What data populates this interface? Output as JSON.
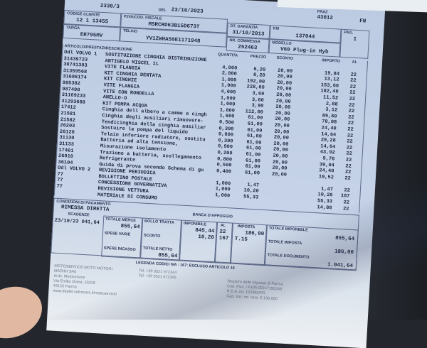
{
  "doc": {
    "numero": "2330/3",
    "del_label": "DEL",
    "data": "23/10/2023",
    "fraz_label": "FRAZ",
    "fraz_val": "43012",
    "fn": "FN",
    "codice_cliente_label": "CODICE CLIENTE",
    "codice_cliente": "12 1 13455",
    "piva_label": "P.IVA/COD. FISCALE",
    "piva": "MSRCRD63B15D673T",
    "targa_label": "TARGA",
    "targa": "ER795MV",
    "telaio_label": "TELAIO",
    "telaio": "YV1ZWHA50E1171948",
    "garanzia_label": "DT. GARANZIA",
    "garanzia": "31/10/2013",
    "km_label": "KM",
    "km": "137044",
    "commessa_label": "NR. COMMESSA",
    "commessa": "252463",
    "modello_label": "MODELLO",
    "modello": "V60 Plug-in Hyb",
    "pag_label": "PAG.",
    "pag": "1"
  },
  "columns": {
    "articolo": "ARTICOLO/PRESTAZIONE",
    "descrizione": "DESCRIZIONE",
    "quantita": "QUANTITA",
    "prezzo": "PREZZO",
    "sconto": "SCONTO",
    "importo": "IMPORTO",
    "al": "AL"
  },
  "items": [
    {
      "art": "Odl VOLVO 1",
      "desc": "SOSTITUZIONE CINGHIA DISTRIBUZIONE",
      "qty": "",
      "price": "",
      "disc": "",
      "amt": "",
      "iva": ""
    },
    {
      "art": "31439723",
      "desc": "ANTIGELO MISCEL 1L",
      "qty": "4,000",
      "price": "6,20",
      "disc": "20,00",
      "amt": "19,84",
      "iva": "22"
    },
    {
      "art": "30741303",
      "desc": "VITE FLANGIA",
      "qty": "2,000",
      "price": "8,20",
      "disc": "20,00",
      "amt": "13,12",
      "iva": "22"
    },
    {
      "art": "31359568",
      "desc": "KIT CINGHIA DENTATA",
      "qty": "1,000",
      "price": "192,00",
      "disc": "20,00",
      "amt": "153,60",
      "iva": "22"
    },
    {
      "art": "31686174",
      "desc": "KIT CINGHIE",
      "qty": "1,000",
      "price": "228,00",
      "disc": "20,00",
      "amt": "182,40",
      "iva": "22"
    },
    {
      "art": "985382",
      "desc": "VITE FLANGIA",
      "qty": "4,000",
      "price": "3,60",
      "disc": "20,00",
      "amt": "11,52",
      "iva": "22"
    },
    {
      "art": "987498",
      "desc": "VITE CON RONDELLA",
      "qty": "1,000",
      "price": "3,60",
      "disc": "20,00",
      "amt": "2,88",
      "iva": "22"
    },
    {
      "art": "31109233",
      "desc": "ANELLO-O",
      "qty": "1,000",
      "price": "3,90",
      "disc": "20,00",
      "amt": "3,12",
      "iva": "22"
    },
    {
      "art": "31293668",
      "desc": "KIT POMPA ACQUA",
      "qty": "1,000",
      "price": "112,00",
      "disc": "20,00",
      "amt": "89,60",
      "iva": "22"
    },
    {
      "art": "17412",
      "desc": "Cinghia dell albero a camme e cingh",
      "qty": "1,600",
      "price": "61,00",
      "disc": "20,00",
      "amt": "78,08",
      "iva": "22"
    },
    {
      "art": "21581",
      "desc": "Cinghia degli ausiliari rimuovere-",
      "qty": "0,500",
      "price": "61,00",
      "disc": "20,00",
      "amt": "24,40",
      "iva": "22"
    },
    {
      "art": "21582",
      "desc": "Tendicinghia della cinghia ausiliar",
      "qty": "0,300",
      "price": "61,00",
      "disc": "20,00",
      "amt": "14,64",
      "iva": "22"
    },
    {
      "art": "26203",
      "desc": "Sostuire la pompa del liquido",
      "qty": "0,600",
      "price": "61,00",
      "disc": "20,00",
      "amt": "29,28",
      "iva": "22"
    },
    {
      "art": "26120",
      "desc": "Telaio inferiore radiatore, sostitu",
      "qty": "0,300",
      "price": "61,00",
      "disc": "20,00",
      "amt": "14,64",
      "iva": "22"
    },
    {
      "art": "31130",
      "desc": "Batteria ad alta tensione,",
      "qty": "0,900",
      "price": "61,00",
      "disc": "20,00",
      "amt": "43,92",
      "iva": "22"
    },
    {
      "art": "31133",
      "desc": "Misurazione isolamento",
      "qty": "0,200",
      "price": "61,00",
      "disc": "20,00",
      "amt": "9,76",
      "iva": "22"
    },
    {
      "art": "17461",
      "desc": "Trazione a batteria, scollegamento",
      "qty": "0,800",
      "price": "61,00",
      "disc": "20,00",
      "amt": "39,04",
      "iva": "22"
    },
    {
      "art": "26010",
      "desc": "Refrigerante",
      "qty": "0,500",
      "price": "61,00",
      "disc": "20,00",
      "amt": "24,40",
      "iva": "22"
    },
    {
      "art": "36104",
      "desc": "Guida di prova secondo Schema di gu",
      "qty": "0,400",
      "price": "61,00",
      "disc": "20,00",
      "amt": "19,52",
      "iva": "22"
    },
    {
      "art": "Odl VOLVO 2",
      "desc": "REVISIONE PERIODICA",
      "qty": "",
      "price": "",
      "disc": "",
      "amt": "",
      "iva": ""
    },
    {
      "art": "77",
      "desc": "BOLLETTINO POSTALE",
      "qty": "1,000",
      "price": "1,47",
      "disc": "",
      "amt": "1,47",
      "iva": "22"
    },
    {
      "art": "77",
      "desc": "CONCESSIONE GOVERNATIVA",
      "qty": "1,000",
      "price": "10,20",
      "disc": "",
      "amt": "10,20",
      "iva": "167"
    },
    {
      "art": "77",
      "desc": "REVISIONE VETTURA",
      "qty": "1,000",
      "price": "55,33",
      "disc": "",
      "amt": "55,33",
      "iva": "22"
    },
    {
      "art": "",
      "desc": "MATERIALE DI CONSUMO",
      "qty": "",
      "price": "",
      "disc": "",
      "amt": "14,88",
      "iva": "22"
    }
  ],
  "totals": {
    "condizioni_label": "CONDIZIONI DI PAGAMENTO",
    "condizioni": "RIMESSA DIRETTA",
    "banca_label": "BANCA D'APPOGGIO",
    "scadenze_label": "SCADENZE",
    "scadenza": "23/10/23 041,64",
    "totale_merce_label": "TOTALE MERCE",
    "totale_merce": "855,64",
    "bollo_label": "BOLLO TRATTA",
    "spese_varie_label": "SPESE VARIE",
    "sconto_label": "SCONTO",
    "spese_incasso_label": "SPESE INCASSO",
    "totale_netto_label": "TOTALE NETTO",
    "totale_netto": "855,64",
    "imponibile_label": "IMPONIBILE",
    "imponibile": [
      "845,44",
      "10,20"
    ],
    "al_label": "AL",
    "al": [
      "22",
      "167"
    ],
    "imposta_label": "IMPOSTA",
    "imposta": [
      "186,00",
      "T.15"
    ],
    "tot_imponibile_label": "TOTALE IMPONIBILE",
    "tot_imponibile": "855,64",
    "tot_imposta_label": "TOTALE IMPOSTA",
    "tot_imposta": "186,00",
    "tot_documento_label": "TOTALE DOCUMENTO",
    "tot_documento": "1.041,64",
    "legenda": "LEGENDA CODICI IVA : 167: ESCLUSO ARTICOLO 15"
  },
  "footer": {
    "company": [
      "MOTOSERVICE MOTO MOTORI",
      "MARINI SPA",
      "di dv. Motoservice",
      "Via Emilia Ovest, 10/2/8",
      "43126 Parma",
      "www.dealer.volvocars.it/motoservice/"
    ],
    "phones": [
      "Tel. +39 0521 672344",
      "Tel. +39 0521 672345"
    ],
    "registry": [
      "Registro delle imprese di Parma",
      "Cod. Fisc. / P.IVA 00247190348",
      "R.E.A. no. 122992/PR",
      "Cap. soc. int. vers. € 130.000"
    ]
  }
}
